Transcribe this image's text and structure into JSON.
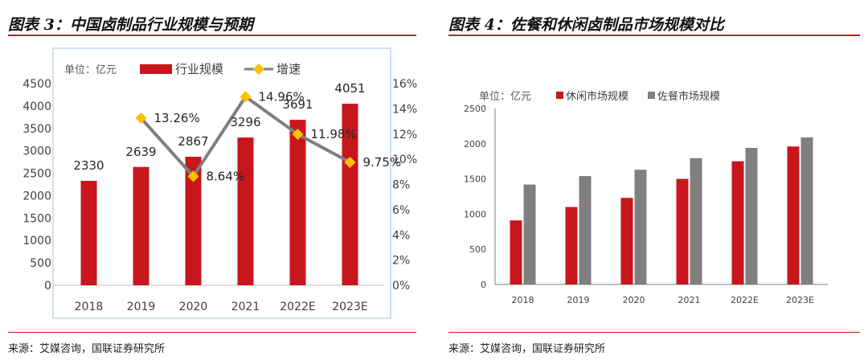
{
  "left": {
    "title": "图表 3：中国卤制品行业规模与预期",
    "source": "来源：艾媒咨询，国联证券研究所"
  },
  "right": {
    "title": "图表 4：佐餐和休闲卤制品市场规模对比",
    "source": "来源：艾媒咨询，国联证券研究所"
  },
  "colors": {
    "red": "#c8161d",
    "gray": "#7f7f7f",
    "marker": "#ffc000"
  },
  "chart_data": [
    {
      "type": "bar",
      "title": "中国卤制品行业规模与预期",
      "unit_label": "单位：亿元",
      "categories": [
        "2018",
        "2019",
        "2020",
        "2021",
        "2022E",
        "2023E"
      ],
      "series": [
        {
          "name": "行业规模",
          "type": "bar",
          "axis": "left",
          "values": [
            2330,
            2639,
            2867,
            3296,
            3691,
            4051
          ],
          "labels": [
            "2330",
            "2639",
            "2867",
            "3296",
            "3691",
            "4051"
          ]
        },
        {
          "name": "增速",
          "type": "line",
          "axis": "right",
          "values": [
            null,
            13.26,
            8.64,
            14.96,
            11.98,
            9.75
          ],
          "labels": [
            "",
            "13.26%",
            "8.64%",
            "14.96%",
            "11.98%",
            "9.75%"
          ]
        }
      ],
      "ylim": [
        0,
        4500
      ],
      "yticks": [
        "0",
        "500",
        "1000",
        "1500",
        "2000",
        "2500",
        "3000",
        "3500",
        "4000",
        "4500"
      ],
      "y2lim": [
        0,
        16
      ],
      "y2ticks": [
        "0%",
        "2%",
        "4%",
        "6%",
        "8%",
        "10%",
        "12%",
        "14%",
        "16%"
      ],
      "legend_position": "top"
    },
    {
      "type": "bar",
      "title": "佐餐和休闲卤制品市场规模对比",
      "unit_label": "单位：亿元",
      "categories": [
        "2018",
        "2019",
        "2020",
        "2021",
        "2022E",
        "2023E"
      ],
      "series": [
        {
          "name": "休闲市场规模",
          "values": [
            910,
            1100,
            1230,
            1500,
            1750,
            1960
          ]
        },
        {
          "name": "佐餐市场规模",
          "values": [
            1420,
            1540,
            1630,
            1795,
            1940,
            2090
          ]
        }
      ],
      "ylim": [
        0,
        2500
      ],
      "yticks": [
        "0",
        "500",
        "1000",
        "1500",
        "2000",
        "2500"
      ],
      "legend_position": "top"
    }
  ]
}
